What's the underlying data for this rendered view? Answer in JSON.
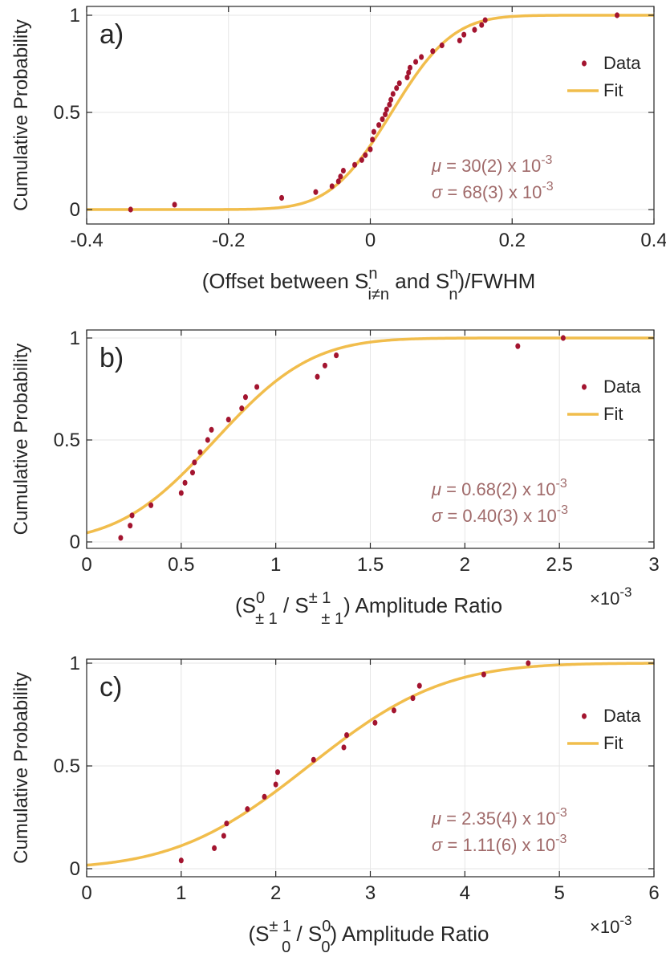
{
  "colors": {
    "data": "#a3142f",
    "fit": "#f1bd4c",
    "stat": "#a06a6a",
    "axis": "#262626",
    "grid": "#e6e6e6"
  },
  "y_axis_label": "Cumulative Probability",
  "chart_data": [
    {
      "type": "scatter",
      "panel_label": "a)",
      "xlim": [
        -0.4,
        0.4
      ],
      "ylim": [
        0,
        1
      ],
      "xticks": [
        -0.4,
        -0.2,
        0,
        0.2,
        0.4
      ],
      "xtick_labels": [
        "-0.4",
        "-0.2",
        "0",
        "0.2",
        "0.4"
      ],
      "yticks": [
        0,
        0.5,
        1
      ],
      "ytick_labels": [
        "0",
        "0.5",
        "1"
      ],
      "xlabel": {
        "pre": "(Offset between S",
        "sup1": "n",
        "sub1": "i≠n",
        "mid": "and S",
        "sup2": "n",
        "sub2": "n",
        "post": ")/FWHM"
      },
      "x_exponent": null,
      "legend": {
        "position": "top-right",
        "data": "Data",
        "fit": "Fit"
      },
      "fit": {
        "model": "normal_cdf",
        "mu": 0.03,
        "sigma": 0.068
      },
      "stats": {
        "mu": {
          "symbol": "μ",
          "text": " = 30(2) x 10",
          "exp": "-3"
        },
        "sigma": {
          "symbol": "σ",
          "text": " = 68(3) x 10",
          "exp": "-3"
        }
      },
      "series": [
        {
          "name": "Data",
          "points": [
            [
              -0.338,
              0.0
            ],
            [
              -0.276,
              0.025
            ],
            [
              -0.125,
              0.06
            ],
            [
              -0.077,
              0.09
            ],
            [
              -0.054,
              0.12
            ],
            [
              -0.045,
              0.145
            ],
            [
              -0.042,
              0.17
            ],
            [
              -0.038,
              0.2
            ],
            [
              -0.022,
              0.23
            ],
            [
              -0.012,
              0.255
            ],
            [
              -0.007,
              0.28
            ],
            [
              0.0,
              0.31
            ],
            [
              0.003,
              0.36
            ],
            [
              0.005,
              0.4
            ],
            [
              0.012,
              0.435
            ],
            [
              0.017,
              0.465
            ],
            [
              0.021,
              0.49
            ],
            [
              0.023,
              0.515
            ],
            [
              0.027,
              0.54
            ],
            [
              0.029,
              0.565
            ],
            [
              0.032,
              0.595
            ],
            [
              0.037,
              0.625
            ],
            [
              0.041,
              0.65
            ],
            [
              0.052,
              0.68
            ],
            [
              0.054,
              0.705
            ],
            [
              0.056,
              0.73
            ],
            [
              0.064,
              0.76
            ],
            [
              0.072,
              0.785
            ],
            [
              0.088,
              0.815
            ],
            [
              0.101,
              0.845
            ],
            [
              0.126,
              0.87
            ],
            [
              0.132,
              0.9
            ],
            [
              0.147,
              0.925
            ],
            [
              0.157,
              0.95
            ],
            [
              0.162,
              0.975
            ],
            [
              0.348,
              1.0
            ]
          ]
        }
      ]
    },
    {
      "type": "scatter",
      "panel_label": "b)",
      "xlim": [
        0,
        3
      ],
      "ylim": [
        0,
        1
      ],
      "xticks": [
        0,
        0.5,
        1,
        1.5,
        2,
        2.5,
        3
      ],
      "xtick_labels": [
        "0",
        "0.5",
        "1",
        "1.5",
        "2",
        "2.5",
        "3"
      ],
      "yticks": [
        0,
        0.5,
        1
      ],
      "ytick_labels": [
        "0",
        "0.5",
        "1"
      ],
      "xlabel": {
        "pre": "(S",
        "sup1": "0",
        "sub1": "± 1",
        "mid": "/ S",
        "sup2": "± 1",
        "sub2": "± 1",
        "post": ") Amplitude Ratio"
      },
      "x_exponent": {
        "base": "×10",
        "exp": "-3"
      },
      "legend": {
        "position": "top-right",
        "data": "Data",
        "fit": "Fit"
      },
      "fit": {
        "model": "normal_cdf",
        "mu": 0.68,
        "sigma": 0.4
      },
      "stats": {
        "mu": {
          "symbol": "μ",
          "text": " = 0.68(2) x 10",
          "exp": "-3"
        },
        "sigma": {
          "symbol": "σ",
          "text": " = 0.40(3) x 10",
          "exp": "-3"
        }
      },
      "series": [
        {
          "name": "Data",
          "points": [
            [
              0.18,
              0.02
            ],
            [
              0.23,
              0.08
            ],
            [
              0.24,
              0.13
            ],
            [
              0.34,
              0.18
            ],
            [
              0.5,
              0.24
            ],
            [
              0.52,
              0.29
            ],
            [
              0.56,
              0.34
            ],
            [
              0.57,
              0.39
            ],
            [
              0.6,
              0.44
            ],
            [
              0.64,
              0.5
            ],
            [
              0.66,
              0.55
            ],
            [
              0.75,
              0.6
            ],
            [
              0.82,
              0.655
            ],
            [
              0.84,
              0.71
            ],
            [
              0.9,
              0.76
            ],
            [
              1.22,
              0.81
            ],
            [
              1.26,
              0.865
            ],
            [
              1.32,
              0.915
            ],
            [
              2.28,
              0.96
            ],
            [
              2.52,
              1.0
            ]
          ]
        }
      ]
    },
    {
      "type": "scatter",
      "panel_label": "c)",
      "xlim": [
        0,
        6
      ],
      "ylim": [
        0,
        1
      ],
      "xticks": [
        0,
        1,
        2,
        3,
        4,
        5,
        6
      ],
      "xtick_labels": [
        "0",
        "1",
        "2",
        "3",
        "4",
        "5",
        "6"
      ],
      "yticks": [
        0,
        0.5,
        1
      ],
      "ytick_labels": [
        "0",
        "0.5",
        "1"
      ],
      "xlabel": {
        "pre": "(S",
        "sup1": "± 1",
        "sub1": "0",
        "mid": "/ S",
        "sup2": "0",
        "sub2": "0",
        "post": ") Amplitude Ratio"
      },
      "x_exponent": {
        "base": "×10",
        "exp": "-3"
      },
      "legend": {
        "position": "top-right",
        "data": "Data",
        "fit": "Fit"
      },
      "fit": {
        "model": "normal_cdf",
        "mu": 2.35,
        "sigma": 1.11
      },
      "stats": {
        "mu": {
          "symbol": "μ",
          "text": " = 2.35(4) x 10",
          "exp": "-3"
        },
        "sigma": {
          "symbol": "σ",
          "text": " = 1.11(6) x 10",
          "exp": "-3"
        }
      },
      "series": [
        {
          "name": "Data",
          "points": [
            [
              1.0,
              0.04
            ],
            [
              1.35,
              0.1
            ],
            [
              1.45,
              0.16
            ],
            [
              1.48,
              0.22
            ],
            [
              1.7,
              0.29
            ],
            [
              1.88,
              0.35
            ],
            [
              2.0,
              0.41
            ],
            [
              2.02,
              0.47
            ],
            [
              2.4,
              0.53
            ],
            [
              2.72,
              0.59
            ],
            [
              2.75,
              0.65
            ],
            [
              3.05,
              0.71
            ],
            [
              3.25,
              0.77
            ],
            [
              3.45,
              0.83
            ],
            [
              3.52,
              0.89
            ],
            [
              4.2,
              0.945
            ],
            [
              4.67,
              1.0
            ]
          ]
        }
      ]
    }
  ]
}
